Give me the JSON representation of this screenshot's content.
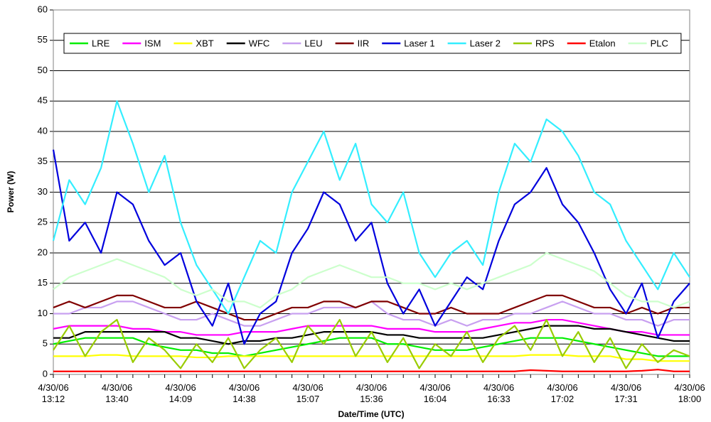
{
  "chart_data": {
    "type": "line",
    "y_label": "Power (W)",
    "x_label": "Date/Time (UTC)",
    "ylim": [
      0,
      60
    ],
    "yticks": [
      0,
      5,
      10,
      15,
      20,
      25,
      30,
      35,
      40,
      45,
      50,
      55,
      60
    ],
    "grid": true,
    "legend": "top",
    "categories": [
      "4/30/06 13:12",
      null,
      null,
      null,
      "4/30/06 13:40",
      null,
      null,
      null,
      "4/30/06 14:09",
      null,
      null,
      null,
      "4/30/06 14:38",
      null,
      null,
      null,
      "4/30/06 15:07",
      null,
      null,
      null,
      "4/30/06 15:36",
      null,
      null,
      null,
      "4/30/06 16:04",
      null,
      null,
      null,
      "4/30/06 16:33",
      null,
      null,
      null,
      "4/30/06 17:02",
      null,
      null,
      null,
      "4/30/06 17:31",
      null,
      null,
      null,
      "4/30/06 18:00"
    ],
    "series": [
      {
        "name": "LRE",
        "color": "#00ee00",
        "values": [
          5,
          5.5,
          6,
          6,
          6,
          6,
          5,
          4.5,
          4,
          4,
          3.5,
          3.5,
          3,
          3.5,
          4,
          4.5,
          5,
          5.5,
          6,
          6,
          6,
          5,
          5,
          4.5,
          4,
          4,
          4,
          4.5,
          5,
          5.5,
          6,
          6,
          6,
          5.5,
          5,
          4.5,
          4,
          3.5,
          3,
          3,
          3
        ]
      },
      {
        "name": "ISM",
        "color": "#ff00ff",
        "values": [
          7.5,
          8,
          8,
          8,
          8,
          7.5,
          7.5,
          7,
          7,
          6.5,
          6.5,
          6.5,
          7,
          7,
          7,
          7.5,
          8,
          8,
          8,
          8,
          8,
          7.5,
          7.5,
          7.5,
          7,
          7,
          7,
          7.5,
          8,
          8.5,
          8.5,
          9,
          9,
          8.5,
          8,
          7.5,
          7,
          7,
          6.5,
          6.5,
          6.5
        ]
      },
      {
        "name": "XBT",
        "color": "#ffff00",
        "values": [
          3,
          3,
          3,
          3.2,
          3.2,
          3,
          3,
          3,
          3,
          2.8,
          2.8,
          3,
          3,
          3,
          3,
          3,
          3,
          3,
          3,
          3,
          3,
          3,
          3,
          3,
          3,
          3,
          3,
          3,
          3,
          3,
          3.2,
          3.2,
          3.2,
          3,
          3,
          3,
          2.5,
          2.5,
          2.2,
          2.2,
          2.2
        ]
      },
      {
        "name": "WFC",
        "color": "#000000",
        "values": [
          6,
          6,
          7,
          7,
          7,
          7,
          7,
          7,
          6,
          6,
          5.5,
          5,
          5.5,
          5.5,
          6,
          6,
          6.5,
          7,
          7,
          7,
          7,
          6.5,
          6.5,
          6,
          6,
          6,
          6,
          6,
          6.5,
          7,
          7.5,
          8,
          8,
          8,
          7.5,
          7.5,
          7,
          6.5,
          6,
          5.5,
          5.5
        ]
      },
      {
        "name": "LEU",
        "color": "#c8a0f0",
        "values": [
          10,
          10,
          11,
          11,
          12,
          12,
          11,
          10,
          9,
          9,
          10,
          9,
          8,
          8,
          9,
          10,
          10,
          11,
          11,
          11,
          12,
          10,
          9,
          9,
          8,
          9,
          8,
          9,
          9,
          10,
          10,
          11,
          12,
          11,
          10,
          10,
          9,
          9,
          8,
          9,
          9
        ]
      },
      {
        "name": "IIR",
        "color": "#800000",
        "values": [
          11,
          12,
          11,
          12,
          13,
          13,
          12,
          11,
          11,
          12,
          11,
          10,
          9,
          9,
          10,
          11,
          11,
          12,
          12,
          11,
          12,
          12,
          11,
          10,
          10,
          11,
          10,
          10,
          10,
          11,
          12,
          13,
          13,
          12,
          11,
          11,
          10,
          11,
          10,
          11,
          11
        ]
      },
      {
        "name": "Laser 1",
        "color": "#0000dd",
        "values": [
          37,
          22,
          25,
          20,
          30,
          28,
          22,
          18,
          20,
          12,
          8,
          15,
          5,
          10,
          12,
          20,
          24,
          30,
          28,
          22,
          25,
          15,
          10,
          14,
          8,
          12,
          16,
          14,
          22,
          28,
          30,
          34,
          28,
          25,
          20,
          14,
          10,
          15,
          6,
          12,
          15
        ]
      },
      {
        "name": "Laser 2",
        "color": "#33eeff",
        "values": [
          22,
          32,
          28,
          34,
          45,
          38,
          30,
          36,
          25,
          18,
          14,
          10,
          16,
          22,
          20,
          30,
          35,
          40,
          32,
          38,
          28,
          25,
          30,
          20,
          16,
          20,
          22,
          18,
          30,
          38,
          35,
          42,
          40,
          36,
          30,
          28,
          22,
          18,
          14,
          20,
          16
        ]
      },
      {
        "name": "RPS",
        "color": "#99cc00",
        "values": [
          4,
          8,
          3,
          7,
          9,
          2,
          6,
          4,
          1,
          5,
          2,
          6,
          1,
          4,
          6,
          2,
          8,
          5,
          9,
          3,
          7,
          2,
          6,
          1,
          5,
          3,
          7,
          2,
          6,
          8,
          4,
          9,
          3,
          7,
          2,
          6,
          1,
          5,
          2,
          4,
          3
        ]
      },
      {
        "name": "Etalon",
        "color": "#ff0000",
        "values": [
          0.5,
          0.5,
          0.5,
          0.5,
          0.5,
          0.5,
          0.5,
          0.5,
          0.5,
          0.5,
          0.5,
          0.5,
          0.5,
          0.5,
          0.5,
          0.5,
          0.5,
          0.5,
          0.5,
          0.5,
          0.5,
          0.5,
          0.5,
          0.5,
          0.5,
          0.5,
          0.5,
          0.5,
          0.5,
          0.5,
          0.7,
          0.6,
          0.5,
          0.5,
          0.5,
          0.5,
          0.5,
          0.6,
          0.8,
          0.5,
          0.5
        ]
      },
      {
        "name": "PLC",
        "color": "#ccffcc",
        "values": [
          14,
          16,
          17,
          18,
          19,
          18,
          17,
          16,
          14,
          13,
          14,
          12,
          12,
          11,
          13,
          14,
          16,
          17,
          18,
          17,
          16,
          16,
          15,
          15,
          14,
          15,
          14,
          15,
          16,
          17,
          18,
          20,
          19,
          18,
          17,
          15,
          13,
          12,
          12,
          11,
          12
        ]
      }
    ]
  }
}
